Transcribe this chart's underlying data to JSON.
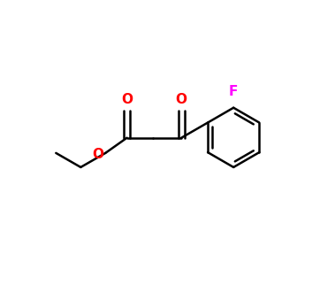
{
  "background_color": "#ffffff",
  "bond_color": "#000000",
  "oxygen_color": "#ff0000",
  "fluorine_color": "#ff00ff",
  "line_width": 1.8,
  "fig_width": 3.79,
  "fig_height": 3.48,
  "dpi": 100,
  "labels": {
    "O_ester_carbonyl": {
      "text": "O",
      "color": "#ff0000"
    },
    "O_ketone": {
      "text": "O",
      "color": "#ff0000"
    },
    "O_ester_single": {
      "text": "O",
      "color": "#ff0000"
    },
    "F": {
      "text": "F",
      "color": "#ff00ff"
    }
  }
}
